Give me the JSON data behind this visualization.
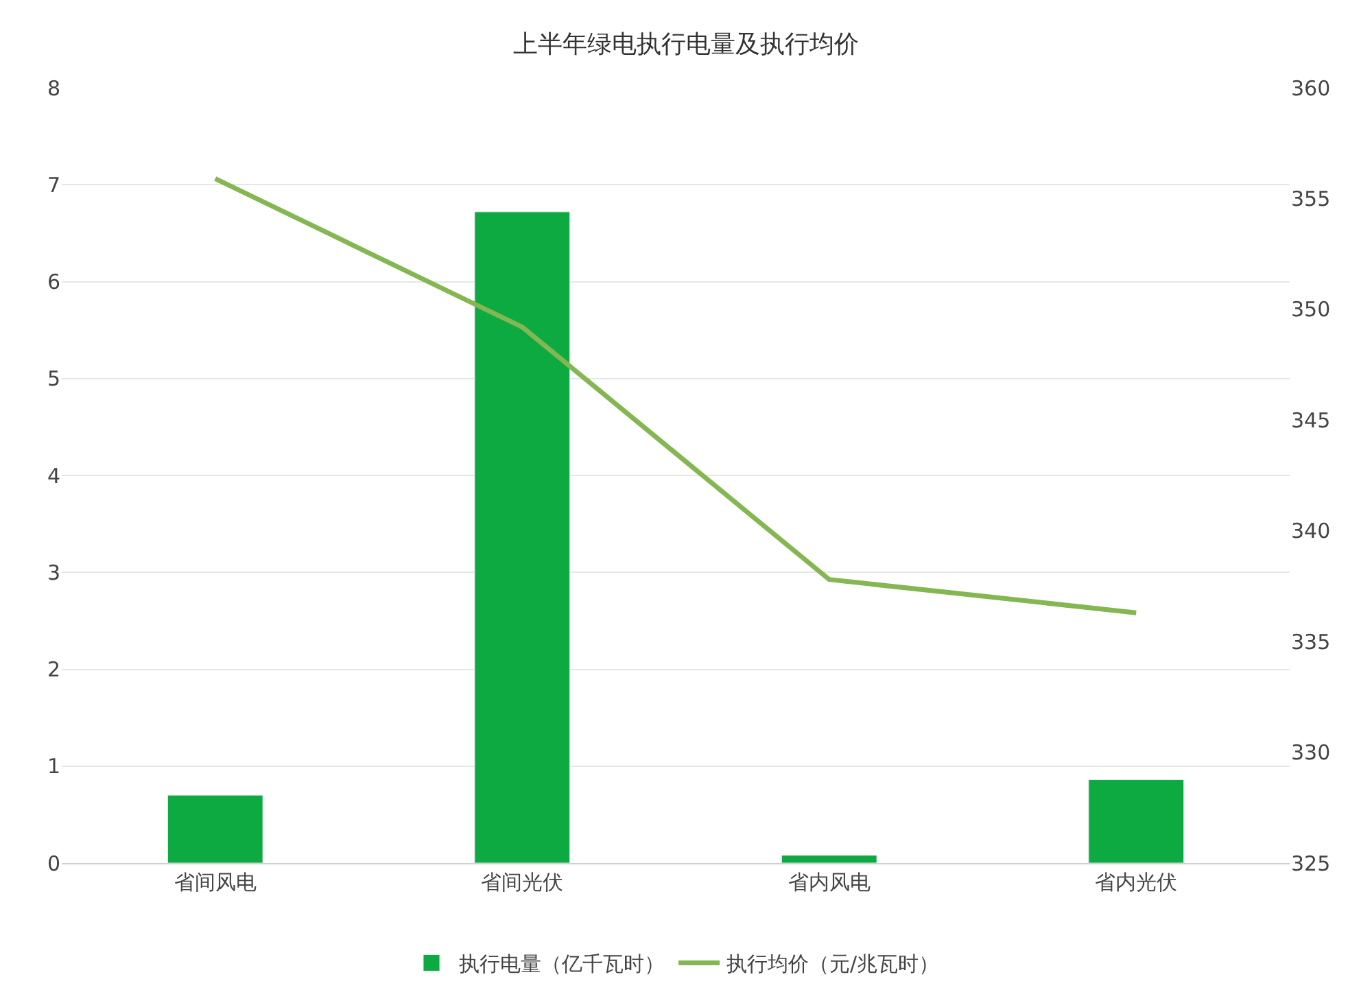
{
  "chart_data": {
    "type": "bar",
    "title": "上半年绿电执行电量及执行均价",
    "categories": [
      "省间风电",
      "省间光伏",
      "省内风电",
      "省内光伏"
    ],
    "series": [
      {
        "name": "执行电量（亿千瓦时）",
        "color": "#0daa41",
        "values": [
          0.7,
          6.72,
          0.08,
          0.86
        ]
      },
      {
        "name": "执行均价（元/兆瓦时）",
        "type": "line",
        "axis": "y2",
        "color": "#84b752",
        "values": [
          355.9,
          349.2,
          337.8,
          336.3
        ]
      }
    ],
    "ylim": [
      0,
      8
    ],
    "yticks": [
      0,
      1,
      2,
      3,
      4,
      5,
      6,
      7,
      8
    ],
    "y2lim": [
      325,
      360
    ],
    "y2ticks": [
      325,
      330,
      335,
      340,
      345,
      350,
      355,
      360
    ],
    "grid": "y",
    "legend": "bottom",
    "marker": "none",
    "line_style": "solid"
  }
}
